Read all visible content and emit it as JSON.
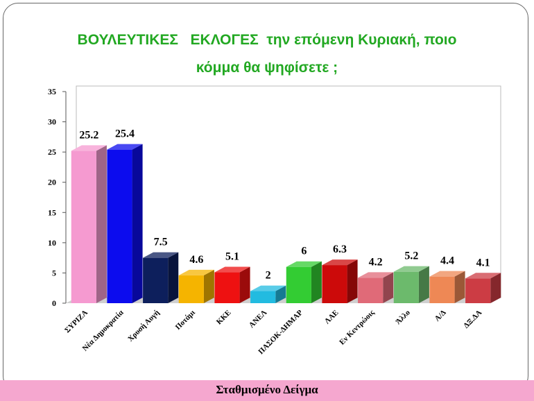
{
  "chart_data": {
    "type": "bar3d",
    "title": "ΒΟΥΛΕΥΤΙΚΕΣ   ΕΚΛΟΓΕΣ  την επόμενη Κυριακή, ποιο κόμμα θα ψηφίσετε ;",
    "footer": "Σταθμισμένο Δείγμα",
    "categories": [
      "ΣΥΡΙΖΑ",
      "Νέα Δημοκρατία",
      "Χρυσή Αυγή",
      "Ποτάμι",
      "ΚΚΕ",
      "ΑΝΕΛ",
      "ΠΑΣΟΚ-ΔΗΜΑΡ",
      "ΛΑΕ",
      "Εν Κεντρώοις",
      "Άλλο",
      "Α/Δ",
      "ΔΞ.ΔΑ"
    ],
    "values": [
      25.2,
      25.4,
      7.5,
      4.6,
      5.1,
      2,
      6,
      6.3,
      4.2,
      5.2,
      4.4,
      4.1
    ],
    "colors": [
      "#f59ad0",
      "#0c0cee",
      "#0d1f5c",
      "#f5b400",
      "#ee1111",
      "#22bbe0",
      "#33cc33",
      "#cc0a0a",
      "#e06a78",
      "#6cba6c",
      "#ee8855",
      "#cc3c44"
    ],
    "ylim": [
      0,
      35
    ],
    "yticks": [
      0,
      5,
      10,
      15,
      20,
      25,
      30,
      35
    ]
  }
}
